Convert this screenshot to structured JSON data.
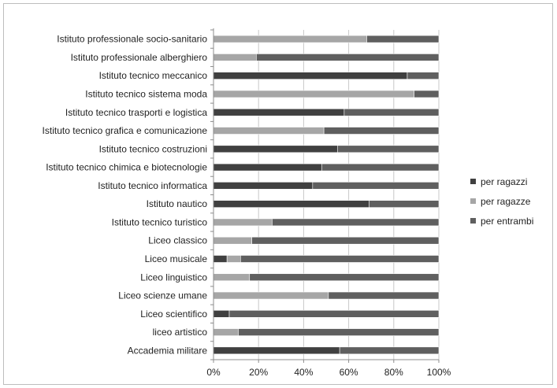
{
  "chart_data": {
    "type": "bar",
    "orientation": "horizontal",
    "stacked": "percent",
    "title": "",
    "xlabel": "",
    "ylabel": "",
    "xlim": [
      0,
      100
    ],
    "x_ticks": [
      "0%",
      "20%",
      "40%",
      "60%",
      "80%",
      "100%"
    ],
    "grid": true,
    "legend_position": "right",
    "categories": [
      "Istituto professionale socio-sanitario",
      "Istituto professionale alberghiero",
      "Istituto tecnico meccanico",
      "Istituto tecnico sistema moda",
      "Istituto tecnico trasporti e logistica",
      "Istituto tecnico grafica e comunicazione",
      "Istituto tecnico costruzioni",
      "Istituto tecnico chimica e biotecnologie",
      "Istituto tecnico informatica",
      "Istituto nautico",
      "Istituto tecnico turistico",
      "Liceo classico",
      "Liceo musicale",
      "Liceo linguistico",
      "Liceo scienze umane",
      "Liceo scientifico",
      "liceo artistico",
      "Accademia militare"
    ],
    "series": [
      {
        "name": "per ragazzi",
        "color": "#404040",
        "values": [
          0,
          0,
          86,
          0,
          58,
          0,
          55,
          48,
          44,
          69,
          0,
          0,
          6,
          0,
          0,
          7,
          0,
          56
        ]
      },
      {
        "name": "per ragazze",
        "color": "#a6a6a6",
        "values": [
          68,
          19,
          0,
          89,
          0,
          49,
          0,
          0,
          0,
          0,
          26,
          17,
          6,
          16,
          51,
          0,
          11,
          0
        ]
      },
      {
        "name": "per entrambi",
        "color": "#5f5f5f",
        "values": [
          32,
          81,
          14,
          11,
          42,
          51,
          45,
          52,
          56,
          31,
          74,
          83,
          88,
          84,
          49,
          93,
          89,
          44
        ]
      }
    ]
  }
}
